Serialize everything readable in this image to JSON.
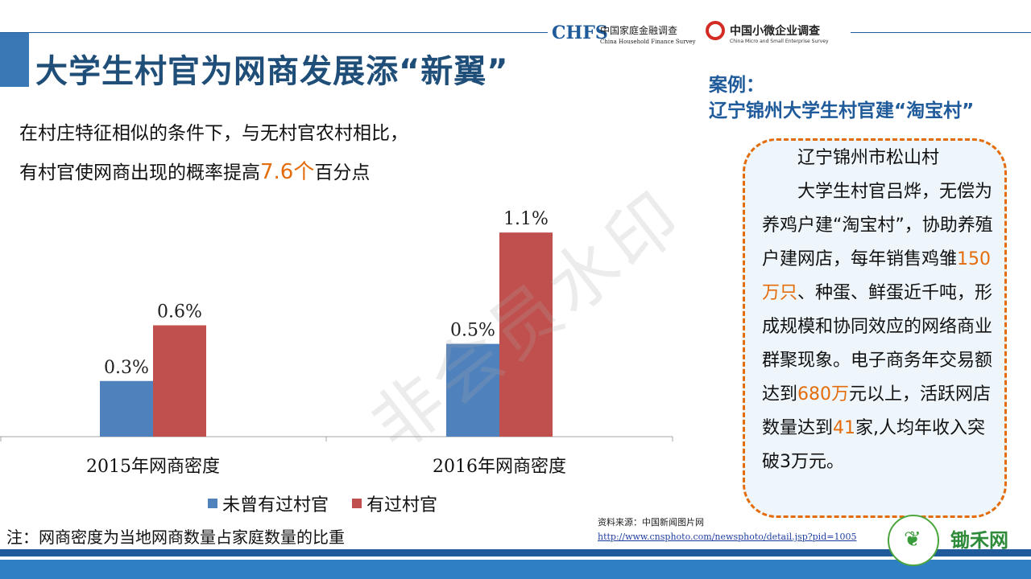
{
  "title": "大学生村官为网商发展添“新翼”",
  "logos": {
    "chfs_mark": "CHFS",
    "chfs_cn": "中国家庭金融调查",
    "chfs_en": "China Household Finance Survey",
    "cmse_cn": "中国小微企业调查",
    "cmse_en": "China Micro and Small Enterprise Survey"
  },
  "case": {
    "label_line1": "案例：",
    "label_line2": "辽宁锦州大学生村官建“淘宝村”",
    "place": "辽宁锦州市松山村",
    "p_intro": "大学生村官吕烨，无偿为养鸡户建“淘宝村”，协助养殖户建网店，每年销售鸡雏",
    "hl1": "150万只",
    "p_mid1": "、种蛋、鲜蛋近千吨，形成规模和协同效应的网络商业群聚现象。电子商务年交易额达到",
    "hl2": "680万",
    "p_mid2": "元以上，活跃网店数量达到",
    "hl3": "41",
    "p_end": "家,人均年收入突破3万元。"
  },
  "finding": {
    "line1": "在村庄特征相似的条件下，与无村官农村相比，",
    "line2_pre": "有村官使网商出现的概率提高",
    "line2_hl": "7.6个",
    "line2_post": "百分点"
  },
  "chart_data": {
    "type": "bar",
    "categories": [
      "2015年网商密度",
      "2016年网商密度"
    ],
    "series": [
      {
        "name": "未曾有过村官",
        "values": [
          0.3,
          0.5
        ],
        "labels": [
          "0.3%",
          "0.5%"
        ],
        "color": "#4f81bd"
      },
      {
        "name": "有过村官",
        "values": [
          0.6,
          1.1
        ],
        "labels": [
          "0.6%",
          "1.1%"
        ],
        "color": "#c0504d"
      }
    ],
    "ylim": [
      0,
      1.3
    ],
    "unit": "%",
    "grid": false,
    "legend": "bottom"
  },
  "note": "注：网商密度为当地网商数量占家庭数量的比重",
  "source": {
    "label": "资料来源：中国新闻图片网",
    "url_text": "http://www.cnsphoto.com/newsphoto/detail.jsp?pid=1005"
  },
  "brand": "锄禾网",
  "watermark": "非会员水印",
  "colors": {
    "title": "#1f4e79",
    "accent_orange": "#e46c0a",
    "brand_blue": "#1f5a9a",
    "brand_green": "#2e8b3a"
  }
}
